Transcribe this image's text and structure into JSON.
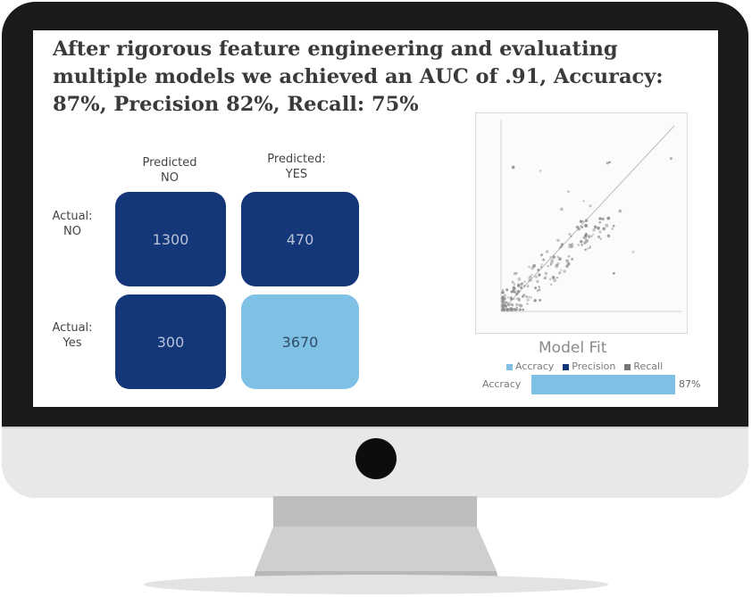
{
  "slide": {
    "headline": "After rigorous feature engineering and evaluating multiple models we achieved an AUC of .91, Accuracy: 87%, Precision 82%, Recall: 75%"
  },
  "confusion_matrix": {
    "col_labels": [
      "Predicted\nNO",
      "Predicted:\nYES"
    ],
    "row_labels": [
      "Actual:\nNO",
      "Actual:\nYes"
    ],
    "cells": [
      [
        "1300",
        "470"
      ],
      [
        "300",
        "3670"
      ]
    ]
  },
  "model_fit": {
    "title": "Model Fit",
    "legend": [
      "Accracy",
      "Precision",
      "Recall"
    ],
    "bar_label": "Accracy",
    "bar_value": "87%",
    "bar_fraction": 0.87,
    "colors": {
      "accuracy": "#7fc1e4",
      "precision": "#14377a",
      "recall": "#777777"
    }
  }
}
